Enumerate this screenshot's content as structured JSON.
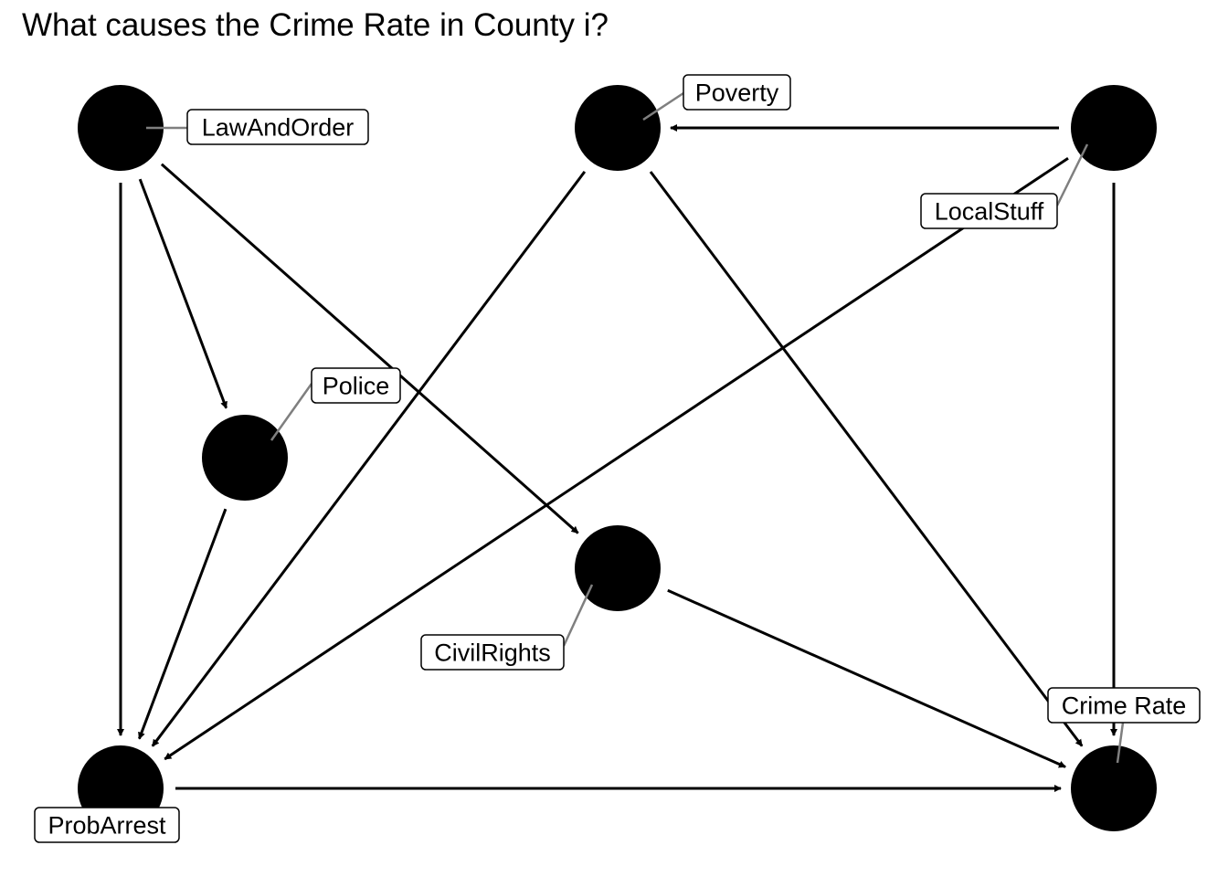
{
  "title": "What causes the Crime Rate in County i?",
  "colors": {
    "node": "#000000",
    "edge": "#000000",
    "leader": "#7f7f7f",
    "label_border": "#000000",
    "background": "#ffffff"
  },
  "nodes": [
    {
      "id": "LawAndOrder",
      "label": "LawAndOrder"
    },
    {
      "id": "Poverty",
      "label": "Poverty"
    },
    {
      "id": "LocalStuff",
      "label": "LocalStuff"
    },
    {
      "id": "Police",
      "label": "Police"
    },
    {
      "id": "CivilRights",
      "label": "CivilRights"
    },
    {
      "id": "ProbArrest",
      "label": "ProbArrest"
    },
    {
      "id": "CrimeRate",
      "label": "Crime Rate"
    }
  ],
  "edges": [
    {
      "from": "LawAndOrder",
      "to": "ProbArrest"
    },
    {
      "from": "LawAndOrder",
      "to": "Police"
    },
    {
      "from": "LawAndOrder",
      "to": "CivilRights"
    },
    {
      "from": "Poverty",
      "to": "ProbArrest"
    },
    {
      "from": "Poverty",
      "to": "CrimeRate"
    },
    {
      "from": "LocalStuff",
      "to": "Poverty"
    },
    {
      "from": "LocalStuff",
      "to": "ProbArrest"
    },
    {
      "from": "LocalStuff",
      "to": "CrimeRate"
    },
    {
      "from": "Police",
      "to": "ProbArrest"
    },
    {
      "from": "CivilRights",
      "to": "CrimeRate"
    },
    {
      "from": "ProbArrest",
      "to": "CrimeRate"
    }
  ]
}
